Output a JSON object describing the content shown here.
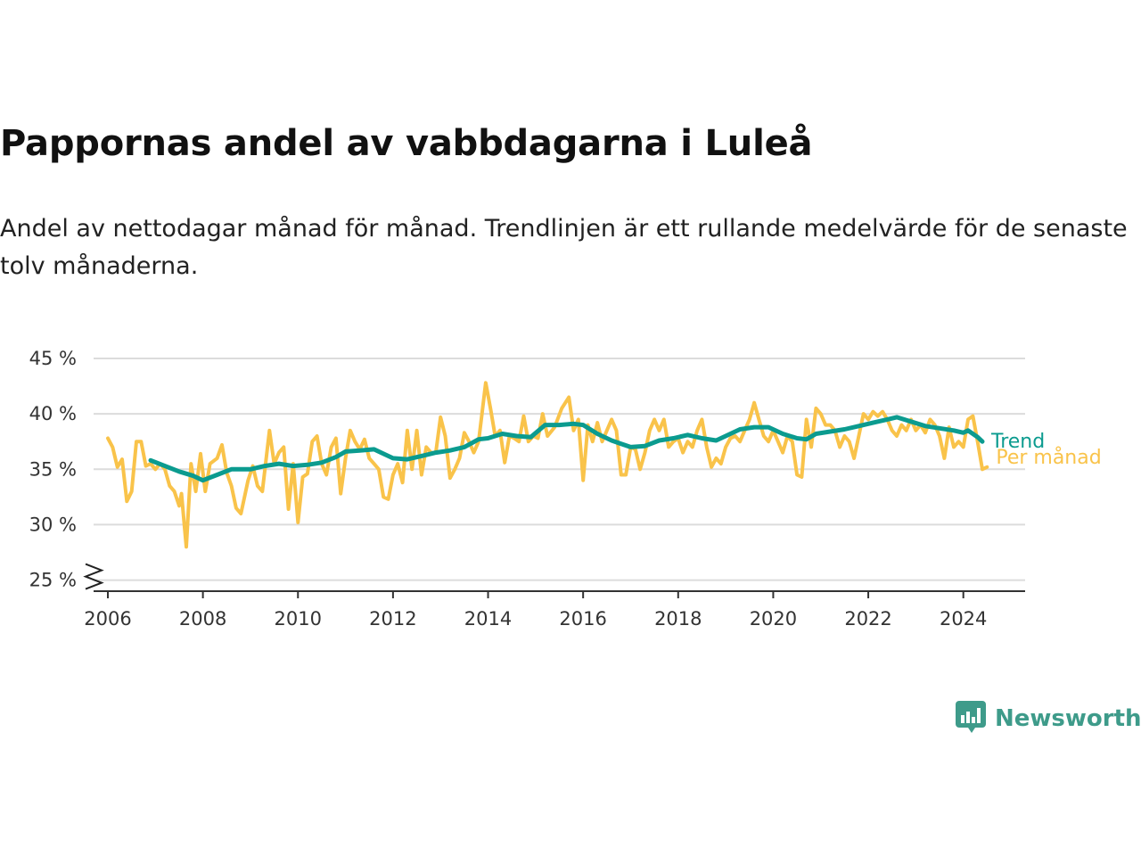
{
  "header": {
    "title": "Pappornas andel av vabbdagarna i Luleå",
    "subtitle": "Andel av nettodagar månad för månad. Trendlinjen är ett rullande medelvärde för de senaste tolv månaderna."
  },
  "brand": {
    "name": "Newsworthy",
    "icon": "newsworthy-logo-icon",
    "color": "#3e9b8a"
  },
  "chart_data": {
    "type": "line",
    "title": "Pappornas andel av vabbdagarna i Luleå",
    "xlabel": "",
    "ylabel": "",
    "xlim": [
      2005.7,
      2025.3
    ],
    "ylim": [
      24,
      45
    ],
    "y_ticks": [
      25,
      30,
      35,
      40,
      45
    ],
    "y_tick_labels": [
      "25 %",
      "30 %",
      "35 %",
      "40 %",
      "45 %"
    ],
    "x_ticks": [
      2006,
      2008,
      2010,
      2012,
      2014,
      2016,
      2018,
      2020,
      2022,
      2024
    ],
    "x_tick_labels": [
      "2006",
      "2008",
      "2010",
      "2012",
      "2014",
      "2016",
      "2018",
      "2020",
      "2022",
      "2024"
    ],
    "y_axis_break": true,
    "grid": "horizontal",
    "legend": "line-end labels, right",
    "series": [
      {
        "name": "Trend",
        "color": "#0b9b8f",
        "points": [
          [
            2006.9,
            35.8
          ],
          [
            2007.2,
            35.3
          ],
          [
            2007.5,
            34.8
          ],
          [
            2007.8,
            34.4
          ],
          [
            2008.0,
            34.0
          ],
          [
            2008.3,
            34.5
          ],
          [
            2008.6,
            35.0
          ],
          [
            2009.0,
            35.0
          ],
          [
            2009.3,
            35.3
          ],
          [
            2009.6,
            35.5
          ],
          [
            2009.9,
            35.3
          ],
          [
            2010.2,
            35.4
          ],
          [
            2010.5,
            35.6
          ],
          [
            2010.8,
            36.1
          ],
          [
            2011.0,
            36.6
          ],
          [
            2011.3,
            36.7
          ],
          [
            2011.6,
            36.8
          ],
          [
            2011.8,
            36.4
          ],
          [
            2012.0,
            36.0
          ],
          [
            2012.3,
            35.9
          ],
          [
            2012.6,
            36.2
          ],
          [
            2012.9,
            36.5
          ],
          [
            2013.2,
            36.7
          ],
          [
            2013.5,
            37.0
          ],
          [
            2013.8,
            37.7
          ],
          [
            2014.0,
            37.8
          ],
          [
            2014.3,
            38.2
          ],
          [
            2014.6,
            38.0
          ],
          [
            2014.9,
            37.9
          ],
          [
            2015.2,
            39.0
          ],
          [
            2015.5,
            39.0
          ],
          [
            2015.8,
            39.1
          ],
          [
            2016.0,
            39.0
          ],
          [
            2016.3,
            38.2
          ],
          [
            2016.6,
            37.6
          ],
          [
            2016.8,
            37.3
          ],
          [
            2017.0,
            37.0
          ],
          [
            2017.3,
            37.1
          ],
          [
            2017.6,
            37.6
          ],
          [
            2017.9,
            37.8
          ],
          [
            2018.2,
            38.1
          ],
          [
            2018.5,
            37.8
          ],
          [
            2018.8,
            37.6
          ],
          [
            2019.0,
            38.0
          ],
          [
            2019.3,
            38.6
          ],
          [
            2019.6,
            38.8
          ],
          [
            2019.9,
            38.8
          ],
          [
            2020.2,
            38.2
          ],
          [
            2020.5,
            37.8
          ],
          [
            2020.7,
            37.7
          ],
          [
            2020.9,
            38.2
          ],
          [
            2021.2,
            38.4
          ],
          [
            2021.5,
            38.6
          ],
          [
            2021.8,
            38.9
          ],
          [
            2022.1,
            39.2
          ],
          [
            2022.4,
            39.5
          ],
          [
            2022.6,
            39.7
          ],
          [
            2022.9,
            39.3
          ],
          [
            2023.2,
            38.9
          ],
          [
            2023.5,
            38.7
          ],
          [
            2023.8,
            38.5
          ],
          [
            2024.0,
            38.3
          ],
          [
            2024.1,
            38.5
          ],
          [
            2024.3,
            37.9
          ],
          [
            2024.4,
            37.5
          ]
        ]
      },
      {
        "name": "Per månad",
        "color": "#f9c34a",
        "points": [
          [
            2006.0,
            37.8
          ],
          [
            2006.1,
            37.0
          ],
          [
            2006.2,
            35.2
          ],
          [
            2006.3,
            35.9
          ],
          [
            2006.4,
            32.1
          ],
          [
            2006.5,
            33.0
          ],
          [
            2006.6,
            37.5
          ],
          [
            2006.7,
            37.5
          ],
          [
            2006.8,
            35.3
          ],
          [
            2006.9,
            35.5
          ],
          [
            2007.0,
            35.0
          ],
          [
            2007.1,
            35.5
          ],
          [
            2007.2,
            35.0
          ],
          [
            2007.3,
            33.5
          ],
          [
            2007.4,
            33.0
          ],
          [
            2007.5,
            31.7
          ],
          [
            2007.55,
            32.8
          ],
          [
            2007.65,
            28.0
          ],
          [
            2007.75,
            35.5
          ],
          [
            2007.85,
            33.0
          ],
          [
            2007.95,
            36.4
          ],
          [
            2008.05,
            33.0
          ],
          [
            2008.15,
            35.5
          ],
          [
            2008.3,
            36.0
          ],
          [
            2008.4,
            37.2
          ],
          [
            2008.5,
            34.7
          ],
          [
            2008.6,
            33.5
          ],
          [
            2008.7,
            31.5
          ],
          [
            2008.8,
            31.0
          ],
          [
            2008.95,
            34.0
          ],
          [
            2009.05,
            35.3
          ],
          [
            2009.15,
            33.5
          ],
          [
            2009.25,
            33.0
          ],
          [
            2009.4,
            38.5
          ],
          [
            2009.5,
            35.5
          ],
          [
            2009.6,
            36.5
          ],
          [
            2009.7,
            37.0
          ],
          [
            2009.8,
            31.4
          ],
          [
            2009.9,
            35.5
          ],
          [
            2010.0,
            30.2
          ],
          [
            2010.1,
            34.3
          ],
          [
            2010.2,
            34.6
          ],
          [
            2010.3,
            37.5
          ],
          [
            2010.4,
            38.0
          ],
          [
            2010.5,
            35.5
          ],
          [
            2010.6,
            34.5
          ],
          [
            2010.7,
            37.0
          ],
          [
            2010.8,
            37.8
          ],
          [
            2010.9,
            32.8
          ],
          [
            2011.0,
            36.0
          ],
          [
            2011.1,
            38.5
          ],
          [
            2011.2,
            37.5
          ],
          [
            2011.3,
            36.8
          ],
          [
            2011.4,
            37.7
          ],
          [
            2011.5,
            36.0
          ],
          [
            2011.6,
            35.5
          ],
          [
            2011.7,
            35.0
          ],
          [
            2011.8,
            32.5
          ],
          [
            2011.9,
            32.3
          ],
          [
            2012.0,
            34.5
          ],
          [
            2012.1,
            35.5
          ],
          [
            2012.2,
            33.8
          ],
          [
            2012.3,
            38.5
          ],
          [
            2012.4,
            35.0
          ],
          [
            2012.5,
            38.5
          ],
          [
            2012.6,
            34.5
          ],
          [
            2012.7,
            37.0
          ],
          [
            2012.8,
            36.5
          ],
          [
            2012.9,
            36.5
          ],
          [
            2013.0,
            39.7
          ],
          [
            2013.1,
            38.0
          ],
          [
            2013.2,
            34.2
          ],
          [
            2013.3,
            35.0
          ],
          [
            2013.4,
            36.0
          ],
          [
            2013.5,
            38.3
          ],
          [
            2013.6,
            37.5
          ],
          [
            2013.7,
            36.5
          ],
          [
            2013.8,
            37.5
          ],
          [
            2013.95,
            42.8
          ],
          [
            2014.05,
            40.5
          ],
          [
            2014.15,
            38.0
          ],
          [
            2014.25,
            38.5
          ],
          [
            2014.35,
            35.6
          ],
          [
            2014.45,
            38.0
          ],
          [
            2014.55,
            37.8
          ],
          [
            2014.65,
            37.5
          ],
          [
            2014.75,
            39.8
          ],
          [
            2014.85,
            37.5
          ],
          [
            2014.95,
            38.0
          ],
          [
            2015.05,
            37.8
          ],
          [
            2015.15,
            40.0
          ],
          [
            2015.25,
            38.0
          ],
          [
            2015.4,
            38.8
          ],
          [
            2015.55,
            40.5
          ],
          [
            2015.7,
            41.5
          ],
          [
            2015.8,
            38.5
          ],
          [
            2015.9,
            39.5
          ],
          [
            2016.0,
            34.0
          ],
          [
            2016.1,
            39.0
          ],
          [
            2016.2,
            37.5
          ],
          [
            2016.3,
            39.2
          ],
          [
            2016.4,
            37.5
          ],
          [
            2016.5,
            38.5
          ],
          [
            2016.6,
            39.5
          ],
          [
            2016.7,
            38.5
          ],
          [
            2016.8,
            34.5
          ],
          [
            2016.9,
            34.5
          ],
          [
            2017.0,
            37.0
          ],
          [
            2017.1,
            36.8
          ],
          [
            2017.2,
            35.0
          ],
          [
            2017.3,
            36.5
          ],
          [
            2017.4,
            38.5
          ],
          [
            2017.5,
            39.5
          ],
          [
            2017.6,
            38.5
          ],
          [
            2017.7,
            39.5
          ],
          [
            2017.8,
            37.0
          ],
          [
            2017.9,
            37.5
          ],
          [
            2018.0,
            37.8
          ],
          [
            2018.1,
            36.5
          ],
          [
            2018.2,
            37.5
          ],
          [
            2018.3,
            37.0
          ],
          [
            2018.4,
            38.5
          ],
          [
            2018.5,
            39.5
          ],
          [
            2018.6,
            37.0
          ],
          [
            2018.7,
            35.2
          ],
          [
            2018.8,
            36.0
          ],
          [
            2018.9,
            35.5
          ],
          [
            2019.0,
            37.0
          ],
          [
            2019.1,
            37.8
          ],
          [
            2019.2,
            38.0
          ],
          [
            2019.3,
            37.5
          ],
          [
            2019.4,
            38.5
          ],
          [
            2019.5,
            39.5
          ],
          [
            2019.6,
            41.0
          ],
          [
            2019.7,
            39.5
          ],
          [
            2019.8,
            38.0
          ],
          [
            2019.9,
            37.5
          ],
          [
            2020.0,
            38.5
          ],
          [
            2020.1,
            37.5
          ],
          [
            2020.2,
            36.5
          ],
          [
            2020.3,
            38.0
          ],
          [
            2020.4,
            37.5
          ],
          [
            2020.5,
            34.5
          ],
          [
            2020.6,
            34.3
          ],
          [
            2020.7,
            39.5
          ],
          [
            2020.8,
            37.0
          ],
          [
            2020.9,
            40.5
          ],
          [
            2021.0,
            40.0
          ],
          [
            2021.1,
            39.0
          ],
          [
            2021.2,
            39.0
          ],
          [
            2021.3,
            38.5
          ],
          [
            2021.4,
            37.0
          ],
          [
            2021.5,
            38.0
          ],
          [
            2021.6,
            37.5
          ],
          [
            2021.7,
            36.0
          ],
          [
            2021.8,
            38.0
          ],
          [
            2021.9,
            40.0
          ],
          [
            2022.0,
            39.5
          ],
          [
            2022.1,
            40.2
          ],
          [
            2022.2,
            39.8
          ],
          [
            2022.3,
            40.2
          ],
          [
            2022.4,
            39.5
          ],
          [
            2022.5,
            38.5
          ],
          [
            2022.6,
            38.0
          ],
          [
            2022.7,
            39.0
          ],
          [
            2022.8,
            38.5
          ],
          [
            2022.9,
            39.5
          ],
          [
            2023.0,
            38.5
          ],
          [
            2023.1,
            39.0
          ],
          [
            2023.2,
            38.3
          ],
          [
            2023.3,
            39.5
          ],
          [
            2023.4,
            39.0
          ],
          [
            2023.5,
            38.0
          ],
          [
            2023.6,
            36.0
          ],
          [
            2023.7,
            38.8
          ],
          [
            2023.8,
            37.0
          ],
          [
            2023.9,
            37.5
          ],
          [
            2024.0,
            37.0
          ],
          [
            2024.1,
            39.5
          ],
          [
            2024.2,
            39.8
          ],
          [
            2024.3,
            37.5
          ],
          [
            2024.4,
            35.0
          ],
          [
            2024.5,
            35.2
          ]
        ]
      }
    ]
  }
}
